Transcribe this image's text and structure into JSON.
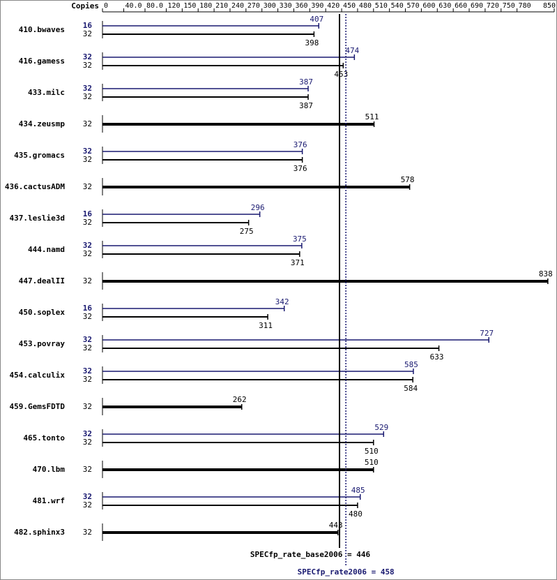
{
  "chart_data": {
    "type": "bar",
    "copies_label": "Copies",
    "categories": [
      "410.bwaves",
      "416.gamess",
      "433.milc",
      "434.zeusmp",
      "435.gromacs",
      "436.cactusADM",
      "437.leslie3d",
      "444.namd",
      "447.dealII",
      "450.soplex",
      "453.povray",
      "454.calculix",
      "459.GemsFDTD",
      "465.tonto",
      "470.lbm",
      "481.wrf",
      "482.sphinx3"
    ],
    "series": [
      {
        "color": "#191970",
        "copies": [
          16,
          32,
          32,
          null,
          32,
          null,
          16,
          32,
          null,
          16,
          32,
          32,
          null,
          32,
          null,
          32,
          null
        ],
        "values": [
          407,
          474,
          387,
          null,
          376,
          null,
          296,
          375,
          null,
          342,
          727,
          585,
          null,
          529,
          null,
          485,
          null
        ]
      },
      {
        "color": "#000000",
        "copies": [
          32,
          32,
          32,
          32,
          32,
          32,
          32,
          32,
          32,
          32,
          32,
          32,
          32,
          32,
          32,
          32,
          32
        ],
        "values": [
          398,
          453,
          387,
          511,
          376,
          578,
          275,
          371,
          838,
          311,
          633,
          584,
          262,
          510,
          510,
          480,
          443
        ]
      }
    ],
    "xlim": [
      0,
      850
    ],
    "xticks": [
      0,
      {
        "value": 40,
        "label": "40.0"
      },
      {
        "value": 80,
        "label": "80.0"
      },
      120,
      150,
      180,
      210,
      240,
      270,
      300,
      330,
      360,
      390,
      420,
      450,
      480,
      510,
      540,
      570,
      600,
      630,
      660,
      690,
      720,
      750,
      780,
      850
    ],
    "reference_lines": [
      {
        "label": "SPECfp_rate_base2006 = 446",
        "value": 446,
        "color": "#000000",
        "style": "solid"
      },
      {
        "label": "SPECfp_rate2006 = 458",
        "value": 458,
        "color": "#191970",
        "style": "dotted"
      }
    ]
  }
}
